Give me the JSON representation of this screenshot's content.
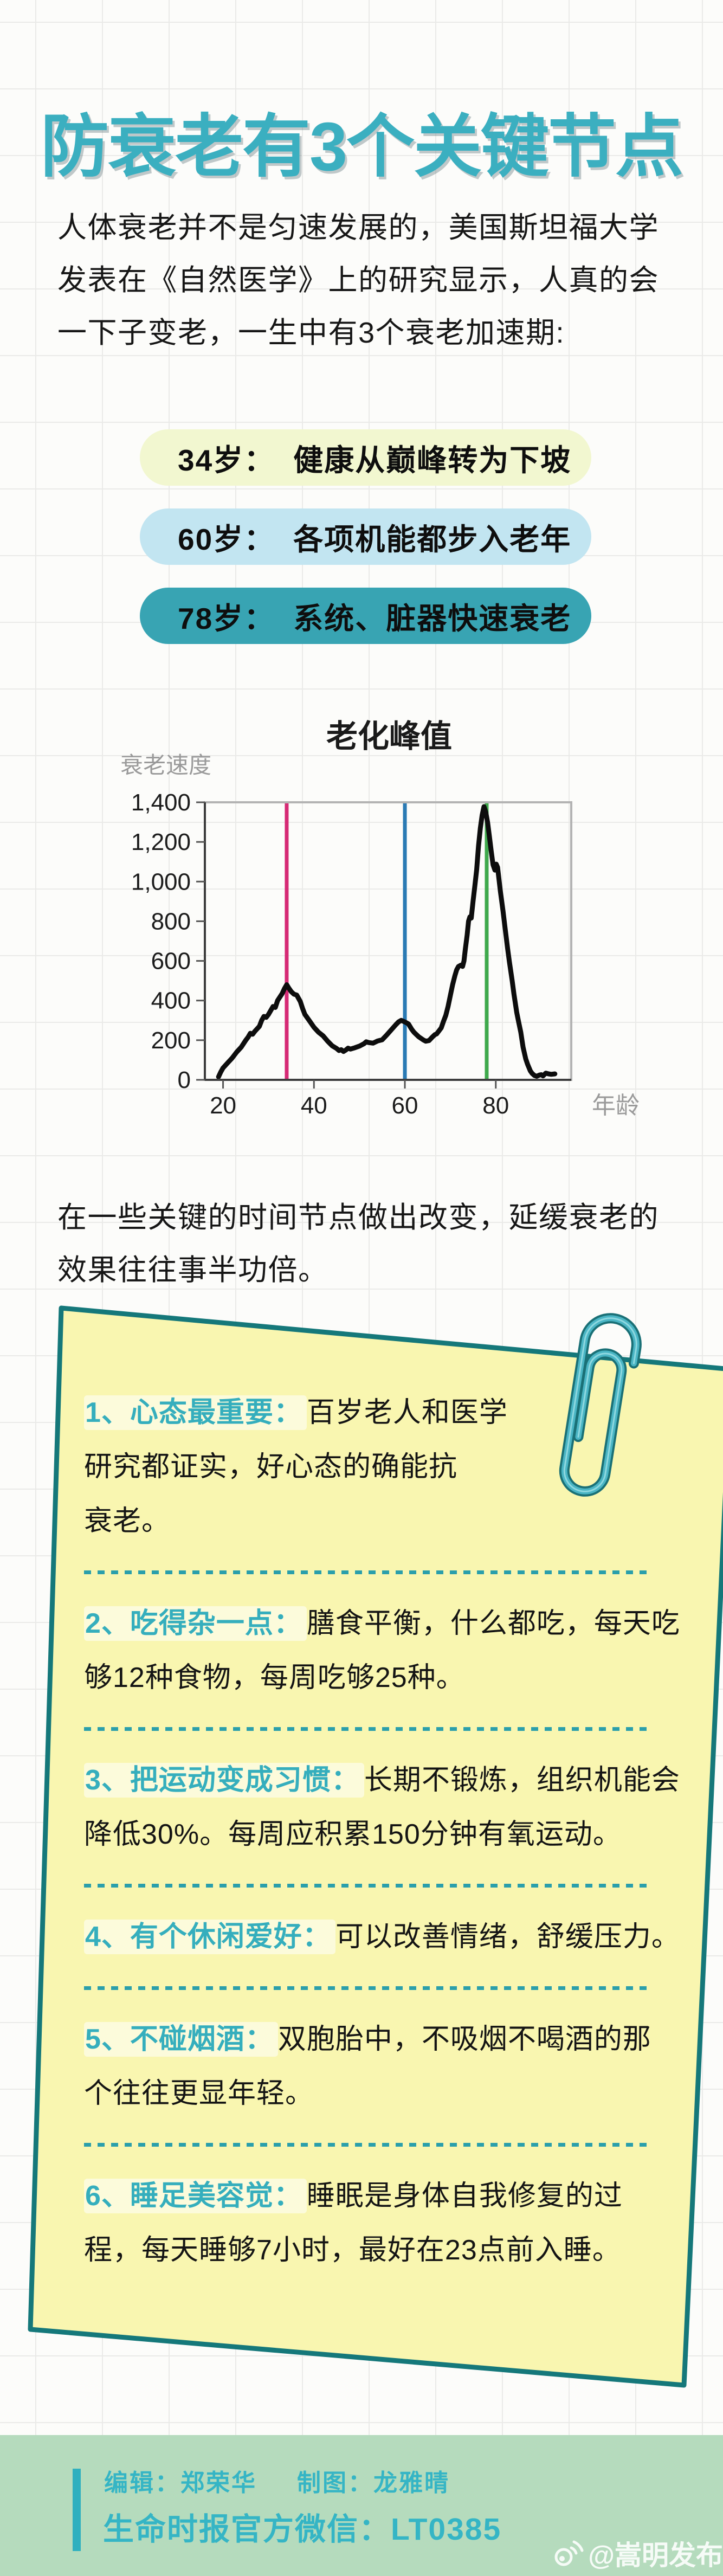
{
  "page_title": "防衰老有3个关键节点",
  "intro": {
    "lines": [
      "人体衰老并不是匀速发展的，美国斯坦福大学",
      "发表在《自然医学》上的研究显示，人真的会",
      "一下子变老，一生中有3个衰老加速期:"
    ]
  },
  "milestones": [
    {
      "age": "34岁：",
      "desc": "健康从巅峰转为下坡",
      "bg": "#f2f7d0"
    },
    {
      "age": "60岁：",
      "desc": "各项机能都步入老年",
      "bg": "#c2e5f1"
    },
    {
      "age": "78岁：",
      "desc": "系统、脏器快速衰老",
      "bg": "#38a4b3"
    }
  ],
  "after_chart": {
    "lines": [
      "在一些关键的时间节点做出改变，延缓衰老的",
      "效果往往事半功倍。"
    ]
  },
  "tips": {
    "accent_color": "#35aebd",
    "dash_color": "#2b9fab",
    "card_fill": "#f9f6b0",
    "card_border": "#15787a",
    "items": [
      {
        "lead": "1、心态最重要：",
        "lines": [
          "百岁老人和医学",
          "研究都证实，好心态的确能抗",
          "衰老。"
        ]
      },
      {
        "lead": "2、吃得杂一点：",
        "lines": [
          "膳食平衡，什么都吃，每天吃",
          "够12种食物，每周吃够25种。"
        ]
      },
      {
        "lead": "3、把运动变成习惯：",
        "lines": [
          "长期不锻炼，组织机能会",
          "降低30%。每周应积累150分钟有氧运动。"
        ]
      },
      {
        "lead": "4、有个休闲爱好：",
        "lines": [
          "可以改善情绪，舒缓压力。"
        ]
      },
      {
        "lead": "5、不碰烟酒：",
        "lines": [
          "双胞胎中，不吸烟不喝酒的那",
          "个往往更显年轻。"
        ]
      },
      {
        "lead": "6、睡足美容觉：",
        "lines": [
          "睡眠是身体自我修复的过",
          "程，每天睡够7小时，最好在23点前入睡。"
        ]
      }
    ]
  },
  "footer": {
    "editor": "编辑：郑荣华",
    "designer": "制图：龙雅晴",
    "wechat": "生命时报官方微信：LT0385",
    "watermark": "@嵩明发布",
    "band_color": "#b5dbbd",
    "accent_color": "#35b5c5"
  },
  "chart_data": {
    "type": "line",
    "title": "老化峰值",
    "ylabel": "衰老速度",
    "xlabel": "年龄",
    "x_ticks": [
      20,
      40,
      60,
      80
    ],
    "y_ticks": [
      0,
      200,
      400,
      600,
      800,
      1000,
      1200,
      1400
    ],
    "y_tick_labels": [
      "0",
      "200",
      "400",
      "600",
      "800",
      "1,000",
      "1,200",
      "1,400"
    ],
    "xlim": [
      16,
      96.6
    ],
    "ylim": [
      0,
      1400
    ],
    "legend_position": "none",
    "grid": "notebook page grid visible behind plot",
    "curve_color": "#0d0d0d",
    "axis_color": "#b3b3b3",
    "spine_color": "#3d3d3d",
    "label_gray": "#9a9a9a",
    "vlines": [
      {
        "x": 34,
        "color": "#d62a75"
      },
      {
        "x": 60,
        "color": "#2a7ab4"
      },
      {
        "x": 78,
        "color": "#3fa94c"
      }
    ],
    "series": [
      {
        "name": "衰老速度",
        "color": "#0d0d0d",
        "points": [
          [
            19,
            15
          ],
          [
            19.5,
            40
          ],
          [
            20,
            60
          ],
          [
            21,
            85
          ],
          [
            22,
            110
          ],
          [
            23,
            140
          ],
          [
            24,
            165
          ],
          [
            25,
            200
          ],
          [
            25.5,
            215
          ],
          [
            26,
            235
          ],
          [
            26.5,
            230
          ],
          [
            27,
            245
          ],
          [
            28,
            270
          ],
          [
            28.5,
            300
          ],
          [
            29,
            320
          ],
          [
            29.5,
            315
          ],
          [
            30,
            330
          ],
          [
            31,
            370
          ],
          [
            31.5,
            365
          ],
          [
            32,
            400
          ],
          [
            33,
            435
          ],
          [
            33.5,
            460
          ],
          [
            34,
            480
          ],
          [
            34.4,
            465
          ],
          [
            35,
            445
          ],
          [
            35.6,
            432
          ],
          [
            36.2,
            428
          ],
          [
            37,
            395
          ],
          [
            37.5,
            360
          ],
          [
            38,
            330
          ],
          [
            39,
            298
          ],
          [
            40,
            265
          ],
          [
            41,
            240
          ],
          [
            42,
            222
          ],
          [
            43,
            195
          ],
          [
            44,
            172
          ],
          [
            45,
            158
          ],
          [
            45.5,
            148
          ],
          [
            46,
            152
          ],
          [
            46.5,
            143
          ],
          [
            47,
            150
          ],
          [
            47.5,
            160
          ],
          [
            48,
            155
          ],
          [
            49,
            162
          ],
          [
            50,
            170
          ],
          [
            51,
            182
          ],
          [
            51.5,
            192
          ],
          [
            52,
            188
          ],
          [
            53,
            185
          ],
          [
            54,
            196
          ],
          [
            55,
            202
          ],
          [
            56,
            226
          ],
          [
            57,
            252
          ],
          [
            58,
            278
          ],
          [
            58.6,
            292
          ],
          [
            59.2,
            300
          ],
          [
            60,
            292
          ],
          [
            60.8,
            282
          ],
          [
            61.5,
            255
          ],
          [
            62,
            240
          ],
          [
            63,
            218
          ],
          [
            64,
            202
          ],
          [
            64.6,
            195
          ],
          [
            65.3,
            198
          ],
          [
            66,
            215
          ],
          [
            66.6,
            228
          ],
          [
            67,
            232
          ],
          [
            68,
            262
          ],
          [
            68.5,
            295
          ],
          [
            69,
            325
          ],
          [
            69.5,
            370
          ],
          [
            70,
            425
          ],
          [
            70.5,
            480
          ],
          [
            71,
            525
          ],
          [
            71.4,
            555
          ],
          [
            71.8,
            572
          ],
          [
            72.3,
            578
          ],
          [
            72.7,
            572
          ],
          [
            73,
            600
          ],
          [
            73.3,
            660
          ],
          [
            73.7,
            730
          ],
          [
            74,
            800
          ],
          [
            74.3,
            822
          ],
          [
            74.6,
            816
          ],
          [
            75,
            900
          ],
          [
            75.4,
            980
          ],
          [
            75.8,
            1060
          ],
          [
            76.2,
            1180
          ],
          [
            76.6,
            1270
          ],
          [
            77,
            1335
          ],
          [
            77.4,
            1378
          ],
          [
            77.8,
            1350
          ],
          [
            78.2,
            1298
          ],
          [
            78.6,
            1228
          ],
          [
            79,
            1152
          ],
          [
            79.4,
            1085
          ],
          [
            79.8,
            1058
          ],
          [
            80.1,
            1088
          ],
          [
            80.4,
            1072
          ],
          [
            81,
            952
          ],
          [
            81.6,
            850
          ],
          [
            82,
            775
          ],
          [
            82.6,
            662
          ],
          [
            83,
            595
          ],
          [
            83.6,
            500
          ],
          [
            84,
            432
          ],
          [
            84.6,
            340
          ],
          [
            85,
            295
          ],
          [
            85.5,
            240
          ],
          [
            86,
            165
          ],
          [
            86.6,
            105
          ],
          [
            87,
            78
          ],
          [
            87.6,
            45
          ],
          [
            88,
            32
          ],
          [
            88.5,
            22
          ],
          [
            89,
            18
          ],
          [
            89.6,
            24
          ],
          [
            90,
            26
          ],
          [
            90.4,
            20
          ],
          [
            91,
            34
          ],
          [
            91.6,
            30
          ],
          [
            92.2,
            28
          ],
          [
            93,
            30
          ]
        ]
      }
    ]
  }
}
